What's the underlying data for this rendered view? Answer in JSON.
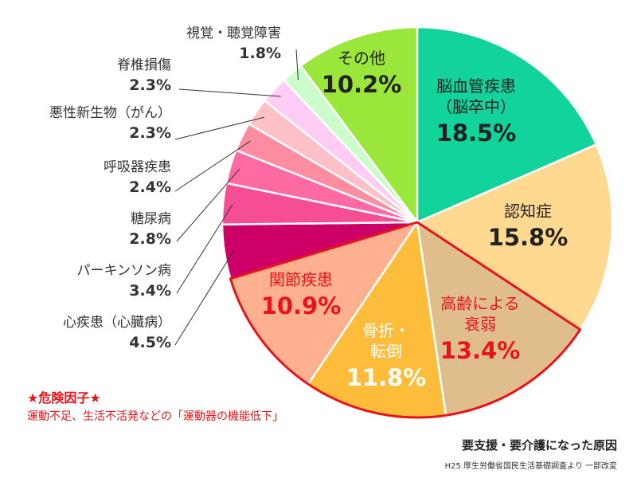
{
  "chart_data": {
    "type": "pie",
    "title": "要支援・要介護になった原因",
    "source": "H25 厚生労働省国民生活基礎調査より 一部改変",
    "start": "12 o'clock",
    "direction": "clockwise",
    "unit": "%",
    "slices": [
      {
        "id": "stroke",
        "name": "脳血管疾患\n（脳卒中）",
        "value": 18.5,
        "label": "18.5%",
        "color": "#12d39c",
        "highlight": false,
        "text_color": "#222222",
        "label_inside": true
      },
      {
        "id": "dementia",
        "name": "認知症",
        "value": 15.8,
        "label": "15.8%",
        "color": "#ffd98f",
        "highlight": false,
        "text_color": "#222222",
        "label_inside": true
      },
      {
        "id": "frailty",
        "name": "高齢による\n衰弱",
        "value": 13.4,
        "label": "13.4%",
        "color": "#e0be8b",
        "highlight": true,
        "text_color": "#e8131b",
        "label_inside": true
      },
      {
        "id": "fracture",
        "name": "骨折・\n転倒",
        "value": 11.8,
        "label": "11.8%",
        "color": "#fdbd3a",
        "highlight": true,
        "text_color": "#ffffff",
        "label_inside": true
      },
      {
        "id": "joint",
        "name": "関節疾患",
        "value": 10.9,
        "label": "10.9%",
        "color": "#ffb08f",
        "highlight": true,
        "text_color": "#e8131b",
        "label_inside": true
      },
      {
        "id": "heart",
        "name": "心疾患（心臓病）",
        "value": 4.5,
        "label": "4.5%",
        "color": "#cc0066",
        "highlight": false,
        "label_inside": false
      },
      {
        "id": "parkinson",
        "name": "パーキンソン病",
        "value": 3.4,
        "label": "3.4%",
        "color": "#f54e95",
        "highlight": false,
        "label_inside": false
      },
      {
        "id": "diabetes",
        "name": "糖尿病",
        "value": 2.8,
        "label": "2.8%",
        "color": "#ff6aa3",
        "highlight": false,
        "label_inside": false
      },
      {
        "id": "respiratory",
        "name": "呼吸器疾患",
        "value": 2.4,
        "label": "2.4%",
        "color": "#ff8da2",
        "highlight": false,
        "label_inside": false
      },
      {
        "id": "cancer",
        "name": "悪性新生物（がん）",
        "value": 2.3,
        "label": "2.3%",
        "color": "#ffc1c7",
        "highlight": false,
        "label_inside": false
      },
      {
        "id": "spinal",
        "name": "脊椎損傷",
        "value": 2.3,
        "label": "2.3%",
        "color": "#ffccf5",
        "highlight": false,
        "label_inside": false
      },
      {
        "id": "vision",
        "name": "視覚・聴覚障害",
        "value": 1.8,
        "label": "1.8%",
        "color": "#ccfccc",
        "highlight": false,
        "label_inside": false
      },
      {
        "id": "other",
        "name": "その他",
        "value": 10.2,
        "label": "10.2%",
        "color": "#9ae63b",
        "highlight": false,
        "text_color": "#222222",
        "label_inside": true
      }
    ],
    "highlight_color": "#e8131b"
  },
  "risk_note": {
    "title": "★危険因子★",
    "text": "運動不足、生活不活発などの「運動器の機能低下」"
  }
}
